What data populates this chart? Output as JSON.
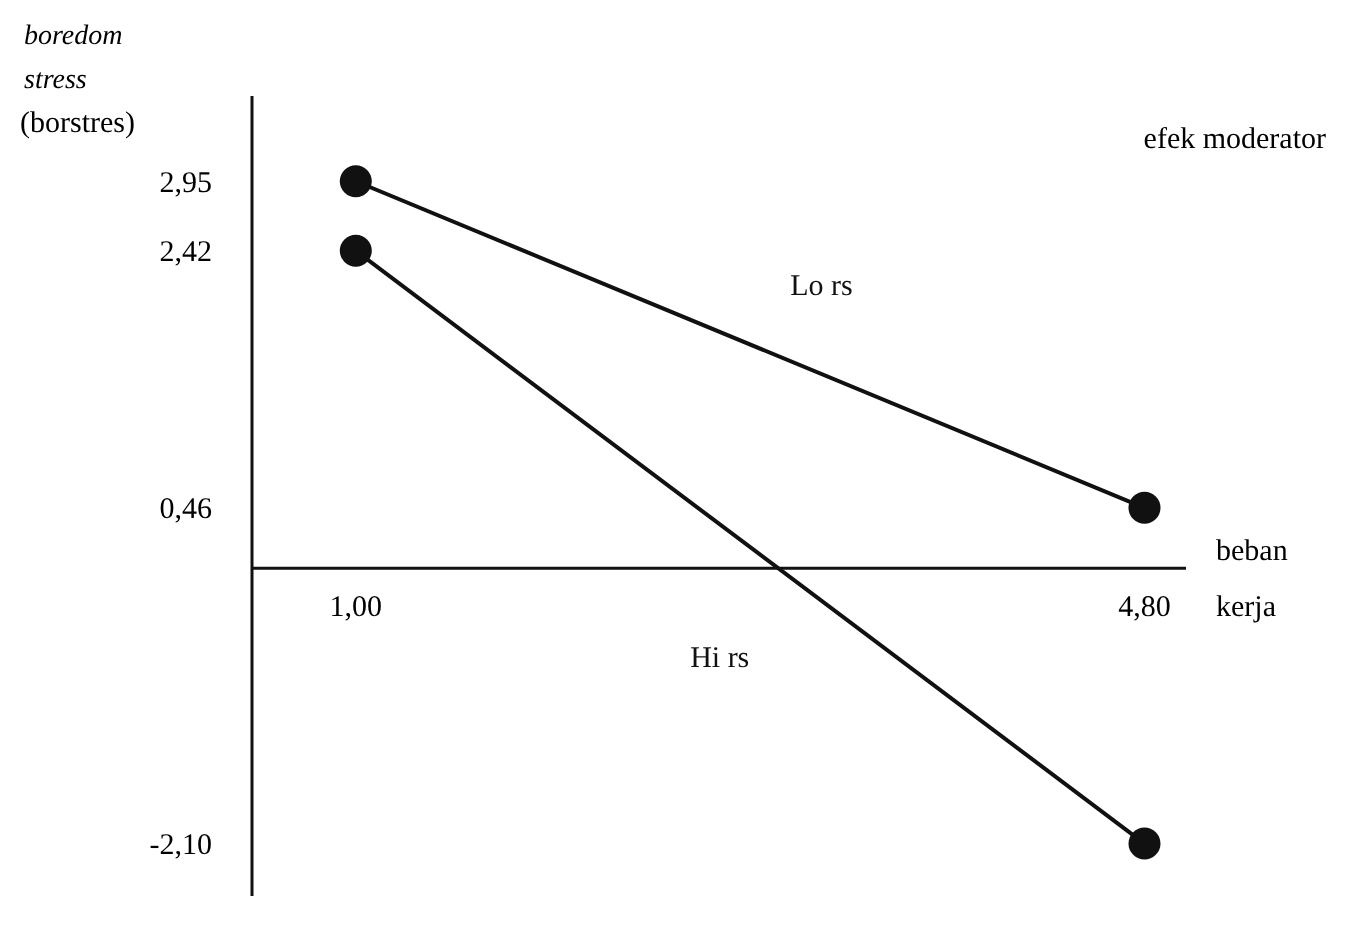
{
  "chart_data": {
    "type": "line",
    "title": "efek moderator",
    "xlabel": "beban kerja",
    "ylabel": "boredom stress (borstres)",
    "x": [
      1,
      4.8
    ],
    "series": [
      {
        "name": "Lo rs",
        "color": "#111111",
        "values": [
          2.95,
          0.46
        ]
      },
      {
        "name": "Hi rs",
        "color": "#111111",
        "values": [
          2.42,
          -2.1
        ]
      }
    ],
    "xlim": [
      0.5,
      5.0
    ],
    "ylim": [
      -2.5,
      3.6
    ],
    "xticks": [
      {
        "value": 1,
        "label": "1,00"
      },
      {
        "value": 4.8,
        "label": "4,80"
      }
    ],
    "yticks": [
      {
        "value": 2.95,
        "label": "2,95"
      },
      {
        "value": 2.42,
        "label": "2,42"
      },
      {
        "value": 0.46,
        "label": "0,46"
      },
      {
        "value": -2.1,
        "label": "-2,10"
      }
    ],
    "marker": "circle",
    "line_style": "solid",
    "grid": false
  }
}
